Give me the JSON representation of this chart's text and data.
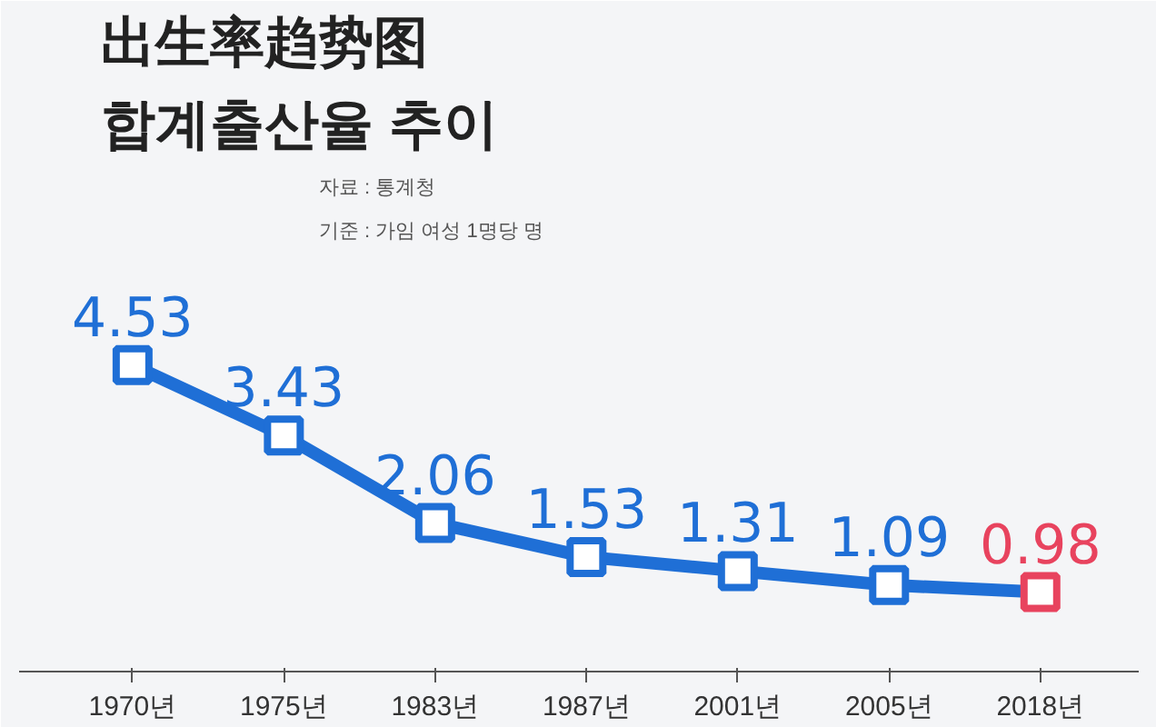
{
  "chart_data": {
    "type": "line",
    "title": "出生率趋势图",
    "subtitle": "합계출산율 추이",
    "annotations": [
      "자료 : 통계청",
      "기준 : 가임 여성 1명당 명"
    ],
    "categories": [
      "1970년",
      "1975년",
      "1983년",
      "1987년",
      "2001년",
      "2005년",
      "2018년"
    ],
    "series": [
      {
        "color": "#1f6fd6",
        "colors": [
          "#1f6fd6",
          "#1f6fd6",
          "#1f6fd6",
          "#1f6fd6",
          "#1f6fd6",
          "#1f6fd6",
          "#e8435e"
        ],
        "values": [
          4.53,
          3.43,
          2.06,
          1.53,
          1.31,
          1.09,
          0.98
        ]
      }
    ],
    "data_labels": true,
    "marker": "square",
    "line_style": "solid",
    "grid": false
  }
}
